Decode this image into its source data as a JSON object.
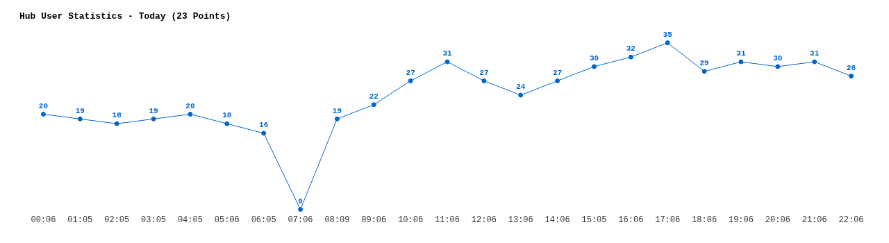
{
  "chart_data": {
    "type": "line",
    "title": "Hub User Statistics - Today (23 Points)",
    "categories": [
      "00:06",
      "01:05",
      "02:05",
      "03:05",
      "04:05",
      "05:06",
      "06:05",
      "07:06",
      "08:09",
      "09:06",
      "10:06",
      "11:06",
      "12:06",
      "13:06",
      "14:06",
      "15:05",
      "16:06",
      "17:06",
      "18:06",
      "19:06",
      "20:06",
      "21:06",
      "22:06"
    ],
    "values": [
      20,
      19,
      18,
      19,
      20,
      18,
      16,
      0,
      19,
      22,
      27,
      31,
      27,
      24,
      27,
      30,
      32,
      35,
      29,
      31,
      30,
      31,
      28
    ],
    "color": "#0066cc",
    "marker": "circle",
    "data_labels": true,
    "grid": false,
    "legend": false
  }
}
